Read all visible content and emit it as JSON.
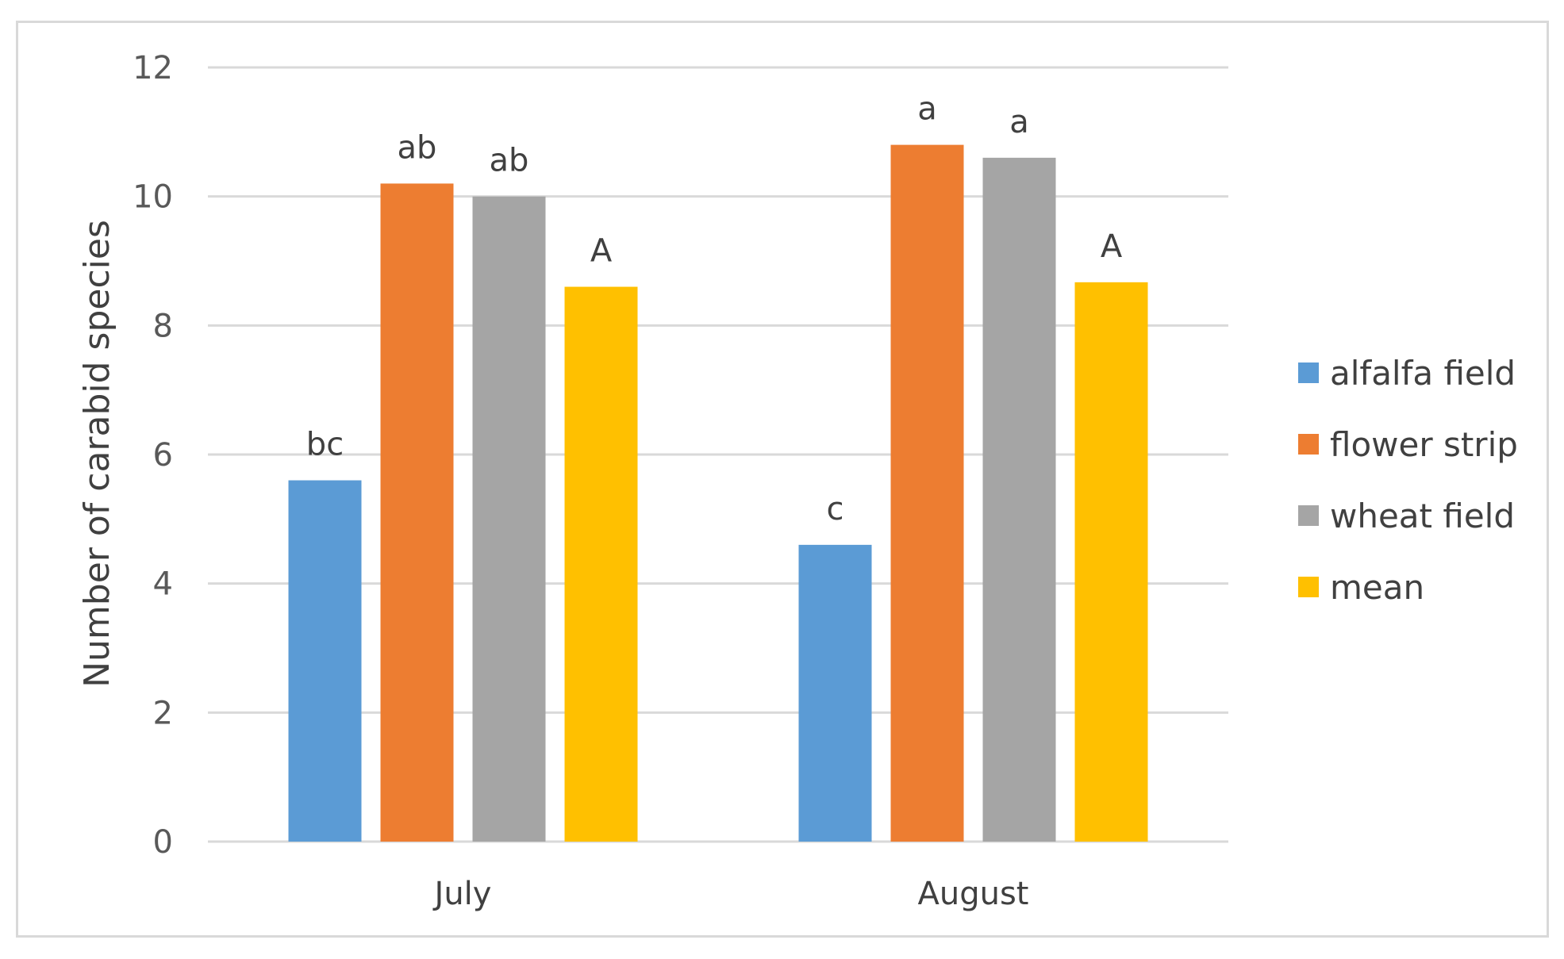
{
  "chart_data": {
    "type": "bar",
    "title": "",
    "xlabel": "",
    "ylabel": "Number of carabid species",
    "ylim": [
      0,
      12
    ],
    "yticks": [
      0,
      2,
      4,
      6,
      8,
      10,
      12
    ],
    "grid": true,
    "legend_position": "right",
    "categories": [
      "July",
      "August"
    ],
    "series": [
      {
        "name": "alfalfa field",
        "color": "#5B9BD5",
        "values": [
          5.6,
          4.6
        ],
        "labels": [
          "bc",
          "c"
        ]
      },
      {
        "name": "flower strip",
        "color": "#ED7D31",
        "values": [
          10.2,
          10.8
        ],
        "labels": [
          "ab",
          "a"
        ]
      },
      {
        "name": "wheat field",
        "color": "#A5A5A5",
        "values": [
          10.0,
          10.6
        ],
        "labels": [
          "ab",
          "a"
        ]
      },
      {
        "name": "mean",
        "color": "#FFC000",
        "values": [
          8.6,
          8.67
        ],
        "labels": [
          "A",
          "A"
        ]
      }
    ]
  }
}
